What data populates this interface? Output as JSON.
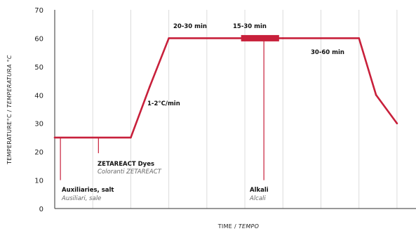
{
  "chart_data": {
    "type": "line",
    "title": "",
    "xlabel_main": "TIME / ",
    "xlabel_italic": "TEMPO",
    "ylabel_main": "TEMPERATURE°C / ",
    "ylabel_italic": "TEMPERATURA °C",
    "ylim": [
      0,
      70
    ],
    "yticks": [
      "0",
      "10",
      "20",
      "30",
      "40",
      "50",
      "60",
      "70"
    ],
    "grid": {
      "vertical": true,
      "horizontal": false
    },
    "series": [
      {
        "color": "#c8203b",
        "x": [
          0,
          2,
          2.5,
          3,
          5,
          6,
          8,
          8.45,
          9
        ],
        "y": [
          25,
          25,
          43,
          60,
          60,
          60,
          60,
          40,
          30
        ]
      }
    ],
    "x_range": [
      0,
      9.5
    ],
    "highlight_bar": {
      "x_start": 4.9,
      "x_end": 5.9,
      "y": 60
    },
    "markers": [
      {
        "x": 0.15,
        "y_top": 25,
        "y_bottom": 10
      },
      {
        "x": 1.15,
        "y_top": 25,
        "y_bottom": 19.5
      },
      {
        "x": 5.5,
        "y_top": 60,
        "y_bottom": 10
      }
    ],
    "annotations": {
      "auxiliaries": {
        "text": "Auxiliaries, salt",
        "italic": "Ausiliari, sale"
      },
      "dyes": {
        "text": "ZETAREACT Dyes",
        "italic": "Coloranti ZETAREACT"
      },
      "alkali": {
        "text": "Alkali",
        "italic": "Alcali"
      },
      "ramp": "1-2°C/min",
      "hold1": "20-30 min",
      "hold2": "15-30 min",
      "hold3": "30-60 min"
    }
  }
}
